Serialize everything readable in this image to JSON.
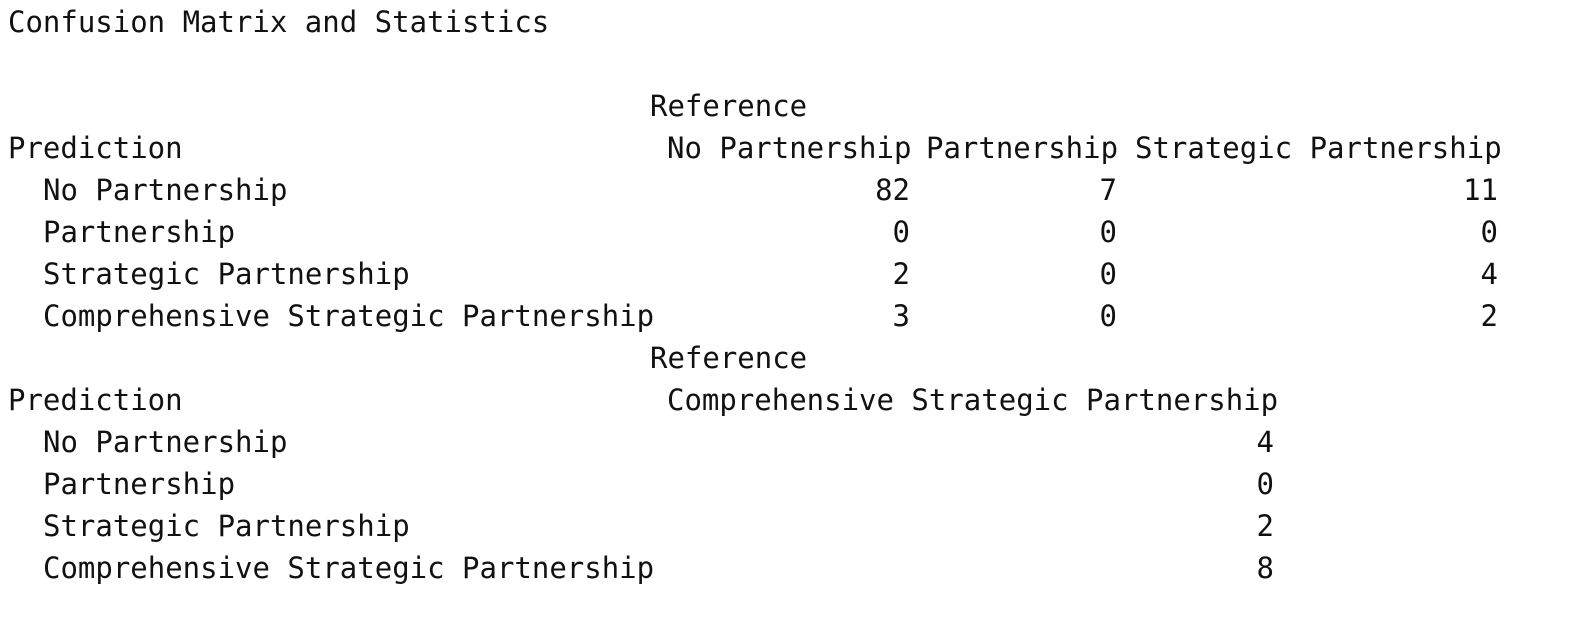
{
  "title": "Confusion Matrix and Statistics",
  "blocks": [
    {
      "reference_label": "Reference",
      "prediction_label": "Prediction",
      "columns": [
        "No Partnership",
        "Partnership",
        "Strategic Partnership"
      ],
      "rows": [
        {
          "label": "No Partnership",
          "values": [
            "82",
            "7",
            "11"
          ]
        },
        {
          "label": "Partnership",
          "values": [
            "0",
            "0",
            "0"
          ]
        },
        {
          "label": "Strategic Partnership",
          "values": [
            "2",
            "0",
            "4"
          ]
        },
        {
          "label": "Comprehensive Strategic Partnership",
          "values": [
            "3",
            "0",
            "2"
          ]
        }
      ]
    },
    {
      "reference_label": "Reference",
      "prediction_label": "Prediction",
      "columns": [
        "Comprehensive Strategic Partnership"
      ],
      "rows": [
        {
          "label": "No Partnership",
          "values": [
            "4"
          ]
        },
        {
          "label": "Partnership",
          "values": [
            "0"
          ]
        },
        {
          "label": "Strategic Partnership",
          "values": [
            "2"
          ]
        },
        {
          "label": "Comprehensive Strategic Partnership",
          "values": [
            "8"
          ]
        }
      ]
    }
  ]
}
